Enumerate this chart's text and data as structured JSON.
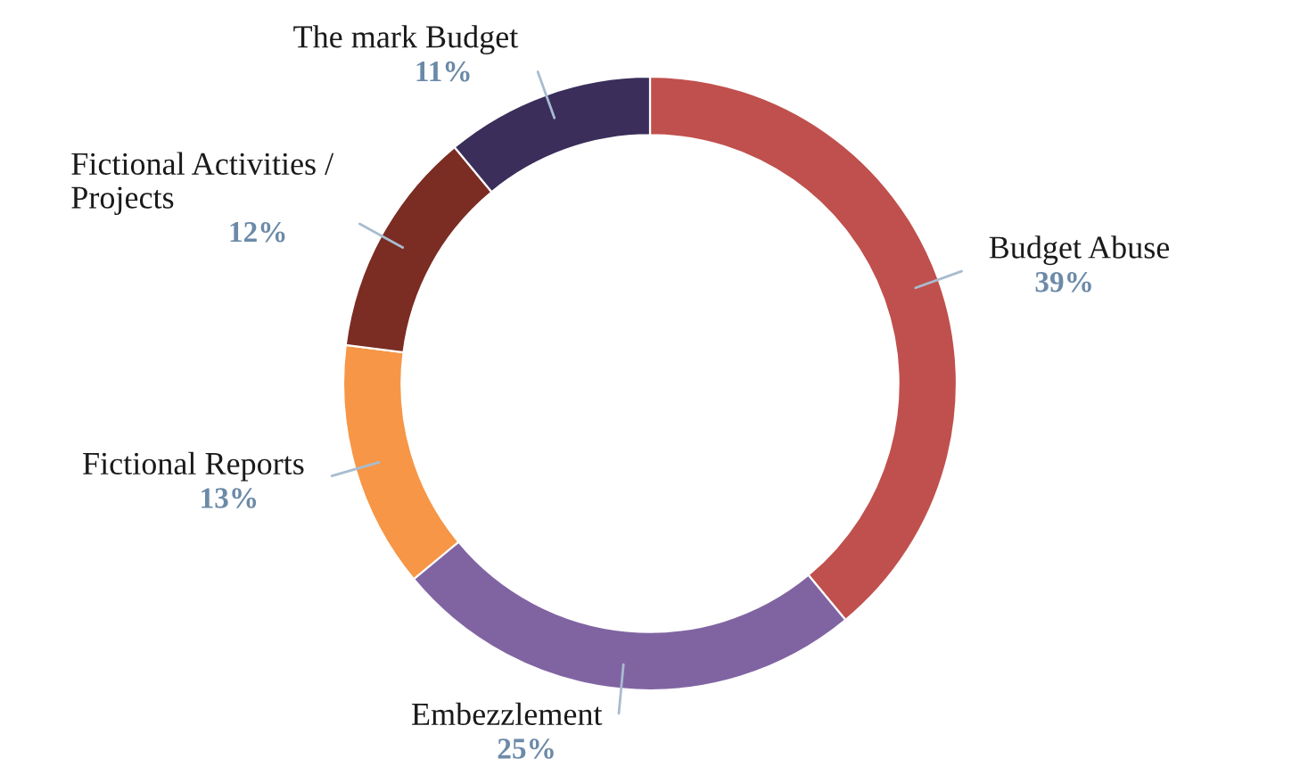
{
  "chart_data": {
    "type": "donut",
    "categories": [
      "Budget Abuse",
      "Embezzlement",
      "Fictional Reports",
      "Fictional Activities /\nProjects",
      "The mark Budget"
    ],
    "values": [
      39,
      25,
      13,
      12,
      11
    ],
    "value_labels": [
      "39%",
      "25%",
      "13%",
      "12%",
      "11%"
    ],
    "colors": [
      "#c0504d",
      "#8064a2",
      "#f79646",
      "#7b2c23",
      "#3b2e5a"
    ],
    "legend": false
  }
}
